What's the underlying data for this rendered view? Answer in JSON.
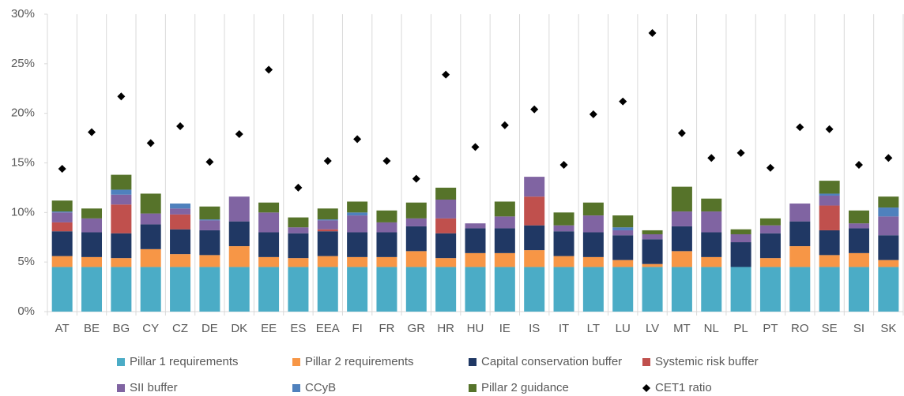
{
  "chart_data": {
    "type": "bar",
    "stacked": true,
    "categories": [
      "AT",
      "BE",
      "BG",
      "CY",
      "CZ",
      "DE",
      "DK",
      "EE",
      "ES",
      "EEA",
      "FI",
      "FR",
      "GR",
      "HR",
      "HU",
      "IE",
      "IS",
      "IT",
      "LT",
      "LU",
      "LV",
      "MT",
      "NL",
      "PL",
      "PT",
      "RO",
      "SE",
      "SI",
      "SK"
    ],
    "ylim": [
      0,
      30
    ],
    "yticks": [
      {
        "value": 0,
        "label": "0%"
      },
      {
        "value": 5,
        "label": "5%"
      },
      {
        "value": 10,
        "label": "10%"
      },
      {
        "value": 15,
        "label": "15%"
      },
      {
        "value": 20,
        "label": "20%"
      },
      {
        "value": 25,
        "label": "25%"
      },
      {
        "value": 30,
        "label": "30%"
      }
    ],
    "category_separators": true,
    "series": [
      {
        "name": "Pillar 1 requirements",
        "color": "#4bacc6",
        "values": [
          4.5,
          4.5,
          4.5,
          4.5,
          4.5,
          4.5,
          4.5,
          4.5,
          4.5,
          4.5,
          4.5,
          4.5,
          4.5,
          4.5,
          4.5,
          4.5,
          4.5,
          4.5,
          4.5,
          4.5,
          4.5,
          4.5,
          4.5,
          4.5,
          4.5,
          4.5,
          4.5,
          4.5,
          4.5
        ]
      },
      {
        "name": "Pillar 2 requirements",
        "color": "#f79646",
        "values": [
          1.1,
          1.0,
          0.9,
          1.8,
          1.3,
          1.2,
          2.1,
          1.0,
          0.9,
          1.1,
          1.0,
          1.0,
          1.6,
          0.9,
          1.4,
          1.4,
          1.7,
          1.1,
          1.0,
          0.7,
          0.3,
          1.6,
          1.0,
          0,
          0.9,
          2.1,
          1.2,
          1.4,
          0.7
        ]
      },
      {
        "name": "Capital conservation buffer",
        "color": "#203864",
        "values": [
          2.5,
          2.5,
          2.5,
          2.5,
          2.5,
          2.5,
          2.5,
          2.5,
          2.5,
          2.5,
          2.5,
          2.5,
          2.5,
          2.5,
          2.5,
          2.5,
          2.5,
          2.5,
          2.5,
          2.5,
          2.5,
          2.5,
          2.5,
          2.5,
          2.5,
          2.5,
          2.5,
          2.5,
          2.5
        ]
      },
      {
        "name": "Systemic risk buffer",
        "color": "#c0504d",
        "values": [
          0.9,
          0,
          2.9,
          0,
          1.5,
          0,
          0,
          0,
          0,
          0.2,
          0,
          0,
          0,
          1.5,
          0,
          0,
          2.9,
          0,
          0,
          0,
          0,
          0,
          0,
          0,
          0,
          0,
          2.5,
          0,
          0
        ]
      },
      {
        "name": "SII buffer",
        "color": "#8064a2",
        "values": [
          1.0,
          1.4,
          1.0,
          1.1,
          0.6,
          1.0,
          2.5,
          2.0,
          0.6,
          0.9,
          1.7,
          1.0,
          0.8,
          1.9,
          0.5,
          1.2,
          2.0,
          0.6,
          1.7,
          0.5,
          0.5,
          1.5,
          2.1,
          0.8,
          0.8,
          1.8,
          1.0,
          0.5,
          1.9
        ]
      },
      {
        "name": "CCyB",
        "color": "#4f81bd",
        "values": [
          0.1,
          0,
          0.5,
          0,
          0.5,
          0.1,
          0,
          0,
          0,
          0.1,
          0.3,
          0,
          0,
          0,
          0,
          0,
          0,
          0,
          0,
          0.3,
          0,
          0,
          0,
          0,
          0,
          0,
          0.2,
          0,
          0.9
        ]
      },
      {
        "name": "Pillar 2 guidance",
        "color": "#56732a",
        "values": [
          1.1,
          1.0,
          1.5,
          2.0,
          0,
          1.3,
          0,
          1.0,
          1.0,
          1.1,
          1.1,
          1.2,
          1.6,
          1.2,
          0,
          1.5,
          0,
          1.3,
          1.3,
          1.2,
          0.4,
          2.5,
          1.3,
          0.5,
          0.7,
          0,
          1.3,
          1.3,
          1.1
        ]
      },
      {
        "name": "CET1 ratio",
        "type": "scatter",
        "marker": "diamond",
        "color": "#000000",
        "values": [
          14.4,
          18.1,
          21.7,
          17.0,
          18.7,
          15.1,
          17.9,
          24.4,
          12.5,
          15.2,
          17.4,
          15.2,
          13.4,
          23.9,
          16.6,
          18.8,
          20.4,
          14.8,
          19.9,
          21.2,
          28.1,
          18.0,
          15.5,
          16.0,
          14.5,
          18.6,
          18.4,
          14.8,
          15.5
        ]
      }
    ]
  }
}
